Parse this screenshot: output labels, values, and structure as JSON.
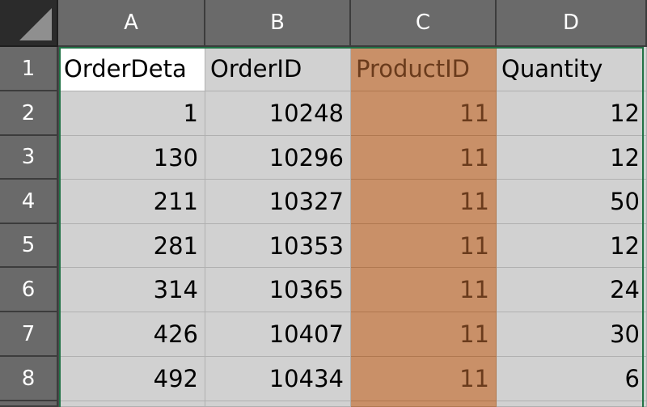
{
  "columns": [
    "A",
    "B",
    "C",
    "D"
  ],
  "rows": [
    "1",
    "2",
    "3",
    "4",
    "5",
    "6",
    "7",
    "8"
  ],
  "header_row": [
    "OrderDeta",
    "OrderID",
    "ProductID",
    "Quantity"
  ],
  "data_rows": [
    [
      "1",
      "10248",
      "11",
      "12"
    ],
    [
      "130",
      "10296",
      "11",
      "12"
    ],
    [
      "211",
      "10327",
      "11",
      "50"
    ],
    [
      "281",
      "10353",
      "11",
      "12"
    ],
    [
      "314",
      "10365",
      "11",
      "24"
    ],
    [
      "426",
      "10407",
      "11",
      "30"
    ],
    [
      "492",
      "10434",
      "11",
      "6"
    ]
  ],
  "colors": {
    "selection_border": "#217346",
    "highlight_column_fill": "#c99068",
    "highlight_column_text": "#6a3b1c"
  },
  "icons": {
    "select_all": "select-all-triangle-icon"
  }
}
